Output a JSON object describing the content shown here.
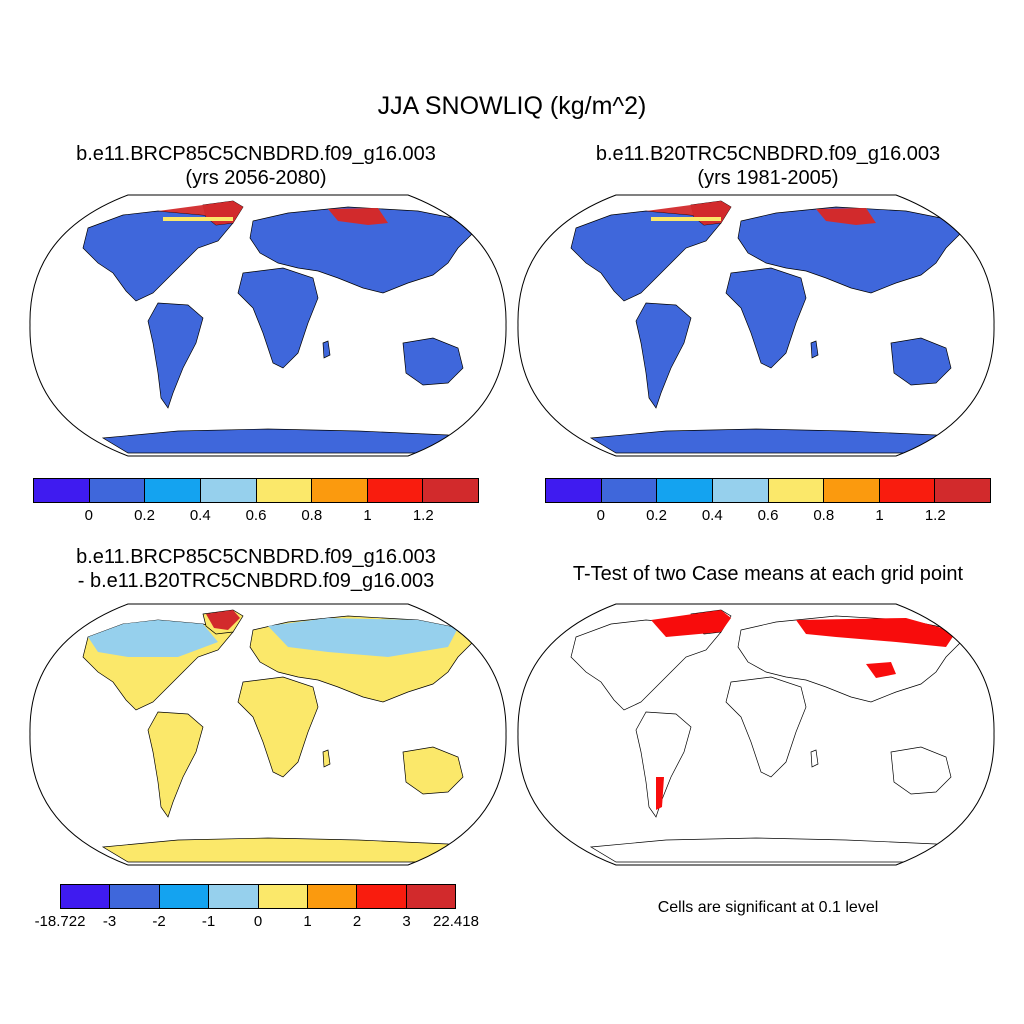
{
  "title": "JJA SNOWLIQ (kg/m^2)",
  "panels": [
    {
      "id": "p1",
      "title_line1": "b.e11.BRCP85C5CNBDRD.f09_g16.003",
      "title_line2": "(yrs 2056-2080)"
    },
    {
      "id": "p2",
      "title_line1": "b.e11.B20TRC5CNBDRD.f09_g16.003",
      "title_line2": "(yrs 1981-2005)"
    },
    {
      "id": "p3",
      "title_line1": "b.e11.BRCP85C5CNBDRD.f09_g16.003",
      "title_line2": "- b.e11.B20TRC5CNBDRD.f09_g16.003"
    },
    {
      "id": "p4",
      "title_line1": "T-Test of two Case means at each grid point"
    }
  ],
  "colors": {
    "palette": [
      "#3f1bf0",
      "#3f67db",
      "#14a3f0",
      "#96d0ed",
      "#fbe86a",
      "#fb9a0e",
      "#f91c0e",
      "#d22a2c"
    ],
    "land_fill": "#3f67db",
    "diff_fill": "#fbe86a",
    "significant": "#f80c0c"
  },
  "colorbar_abs": {
    "labels": [
      "0",
      "0.2",
      "0.4",
      "0.6",
      "0.8",
      "1",
      "1.2"
    ]
  },
  "colorbar_diff": {
    "labels": [
      "-18.722",
      "-3",
      "-2",
      "-1",
      "0",
      "1",
      "2",
      "3",
      "22.418"
    ]
  },
  "significance_note": "Cells are significant at 0.1 level"
}
